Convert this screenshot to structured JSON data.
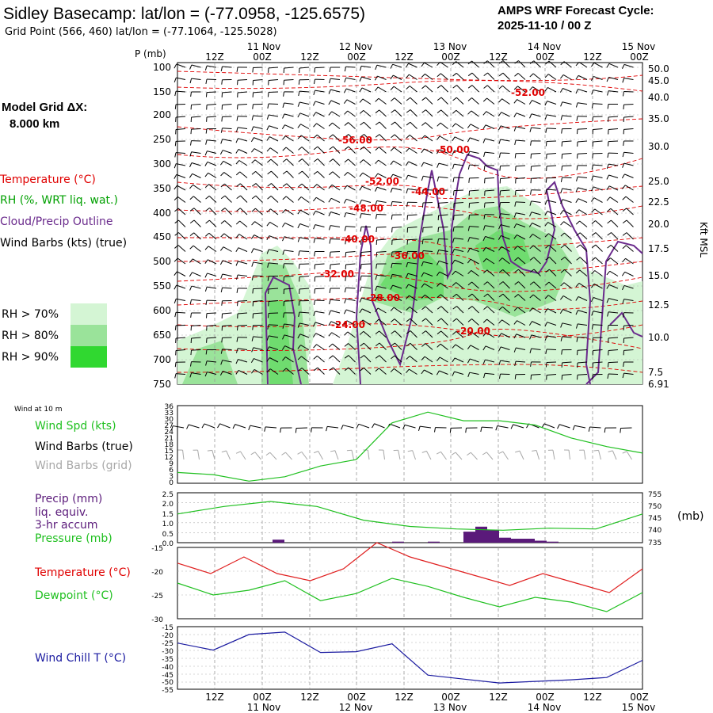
{
  "header": {
    "title": "Sidley Basecamp:  lat/lon = (-77.0958, -125.6575)",
    "grid_point": "Grid Point (566, 460) lat/lon = (-77.1064, -125.5028)",
    "cycle_line1": "AMPS WRF Forecast Cycle:",
    "cycle_line2": "2025-11-10 / 00  Z",
    "model_grid_line1": "Model Grid ΔX:",
    "model_grid_line2": "8.000 km"
  },
  "colors": {
    "temperature": "#e00000",
    "rh_text": "#00a000",
    "cloud": "#6a2a8c",
    "wind_true": "#000000",
    "wind_grid": "#a8a8a8",
    "wind_speed": "#20c020",
    "precip": "#5a1a7a",
    "pressure": "#20c020",
    "temp_line": "#e02020",
    "dewpoint_line": "#20c020",
    "windchill": "#1a1aa0",
    "rh70": "#d4f5d4",
    "rh80": "#9ae39a",
    "rh90": "#30d830"
  },
  "legend": {
    "temperature": "Temperature (°C)",
    "rh": "RH (%, WRT liq. wat.)",
    "cloud": "Cloud/Precip Outline",
    "wind": "Wind Barbs (kts) (true)",
    "rh70": "RH > 70%",
    "rh80": "RH > 80%",
    "rh90": "RH > 90%"
  },
  "time_axis": {
    "top_date_labels": [
      "11 Nov",
      "12 Nov",
      "13 Nov",
      "14 Nov",
      "15 Nov"
    ],
    "hour_labels": [
      "12Z",
      "00Z",
      "12Z",
      "00Z",
      "12Z",
      "00Z",
      "12Z",
      "00Z",
      "12Z",
      "00Z"
    ],
    "bottom_date_labels": [
      "11 Nov",
      "12 Nov",
      "13 Nov",
      "14 Nov",
      "15 Nov"
    ]
  },
  "chart_data": [
    {
      "type": "heatmap",
      "name": "vertical-cross-section",
      "ylabel": "P (mb)",
      "ylabel_right": "Kft MSL",
      "pressure_ticks": [
        "100",
        "150",
        "200",
        "250",
        "300",
        "350",
        "400",
        "450",
        "500",
        "550",
        "600",
        "650",
        "700",
        "750"
      ],
      "height_ticks": [
        "50.0",
        "45.0",
        "40.0",
        "35.0",
        "30.0",
        "25.0",
        "22.5",
        "20.0",
        "17.5",
        "15.0",
        "12.5",
        "10.0",
        "7.5",
        "6.91"
      ],
      "isotherm_labels": [
        "-52.00",
        "-56.00",
        "-50.00",
        "-52.00",
        "-44.00",
        "-48.00",
        "-40.00",
        "-36.00",
        "-32.00",
        "-28.00",
        "-24.00",
        "-20.00"
      ]
    },
    {
      "type": "line",
      "name": "wind-10m",
      "title": "Wind at 10 m",
      "labels": [
        "Wind Spd (kts)",
        "Wind Barbs (true)",
        "Wind Barbs (grid)"
      ],
      "yticks": [
        "36",
        "33",
        "30",
        "27",
        "24",
        "21",
        "18",
        "15",
        "12",
        "9",
        "6",
        "3",
        "0"
      ],
      "hours": [
        0,
        12,
        24,
        36,
        48,
        60,
        72,
        84,
        96,
        108,
        120,
        132,
        144
      ],
      "wind_speed_kts": [
        5,
        4,
        1,
        3,
        8,
        11,
        28,
        33,
        29,
        29,
        27,
        21,
        17,
        14
      ]
    },
    {
      "type": "bar",
      "name": "precip-pressure",
      "labels": [
        "Precip (mm)",
        "liq. equiv.",
        "3-hr accum",
        "Pressure (mb)"
      ],
      "yticks_left": [
        "2.5",
        "2.0",
        "1.5",
        "1.0",
        "0.5",
        "0.0"
      ],
      "yticks_right": [
        "755",
        "750",
        "745",
        "740",
        "735"
      ],
      "unit_right": "(mb)",
      "hours": [
        0,
        12,
        24,
        36,
        48,
        60,
        72,
        84,
        96,
        108,
        120,
        132,
        144
      ],
      "pressure_mb": [
        746.5,
        749.5,
        751.5,
        749.5,
        744,
        741.5,
        740.5,
        740,
        740.8,
        740.5,
        746.5
      ],
      "precip_mm": [
        0.15,
        0.05,
        0.05,
        0.55,
        0.8,
        0.65,
        0.25,
        0.2,
        0.2,
        0.1,
        0.05
      ]
    },
    {
      "type": "line",
      "name": "temperature-dewpoint",
      "labels": [
        "Temperature (°C)",
        "Dewpoint (°C)"
      ],
      "yticks": [
        "-15",
        "-20",
        "-25",
        "-30"
      ],
      "temperature_c": [
        -18.3,
        -20.5,
        -17,
        -20.5,
        -22,
        -19.5,
        -14,
        -17,
        -19,
        -21,
        -23,
        -20.5,
        -22.5,
        -24.5,
        -19.5
      ],
      "dewpoint_c": [
        -22.5,
        -25,
        -24,
        -22,
        -26.2,
        -24.7,
        -21.5,
        -23.2,
        -25.5,
        -27.5,
        -25.5,
        -26.5,
        -28.5,
        -24.5
      ]
    },
    {
      "type": "line",
      "name": "wind-chill",
      "labels": [
        "Wind Chill T (°C)"
      ],
      "yticks": [
        "-15",
        "-20",
        "-25",
        "-30",
        "-35",
        "-40",
        "-45",
        "-50",
        "-55"
      ],
      "windchill_c": [
        -25.5,
        -30,
        -20,
        -18.5,
        -31.5,
        -31,
        -26,
        -46,
        -48.5,
        -51,
        -50,
        -49,
        -47.5,
        -36.5
      ]
    }
  ]
}
